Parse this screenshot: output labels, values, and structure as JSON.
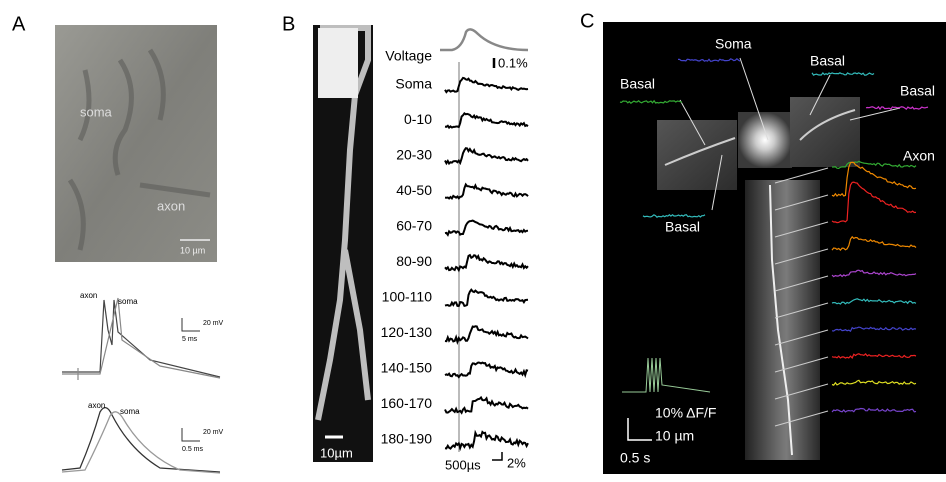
{
  "panel_a": {
    "label": "A",
    "image_labels": [
      "soma",
      "axon",
      "10 µm"
    ],
    "trace_1": {
      "labels": [
        "axon",
        "soma"
      ],
      "scale_v": "20 mV",
      "scale_t": "5 ms"
    },
    "trace_2": {
      "labels": [
        "axon",
        "soma"
      ],
      "scale_v": "20 mV",
      "scale_t": "0.5 ms"
    }
  },
  "panel_b": {
    "label": "B",
    "voltage": "Voltage",
    "voltage_scale": "0.1%",
    "rows": [
      "Soma",
      "0-10",
      "20-30",
      "40-50",
      "60-70",
      "80-90",
      "100-110",
      "120-130",
      "140-150",
      "160-170",
      "180-190"
    ],
    "length_scale": "10µm",
    "time_scale": "500µs",
    "df_scale": "2%"
  },
  "panel_c": {
    "label": "C",
    "soma": "Soma",
    "basal": [
      "Basal",
      "Basal",
      "Basal",
      "Basal"
    ],
    "axon": "Axon",
    "df_scale": "10% ΔF/F",
    "length_scale": "10 µm",
    "time_scale": "0.5 s"
  }
}
